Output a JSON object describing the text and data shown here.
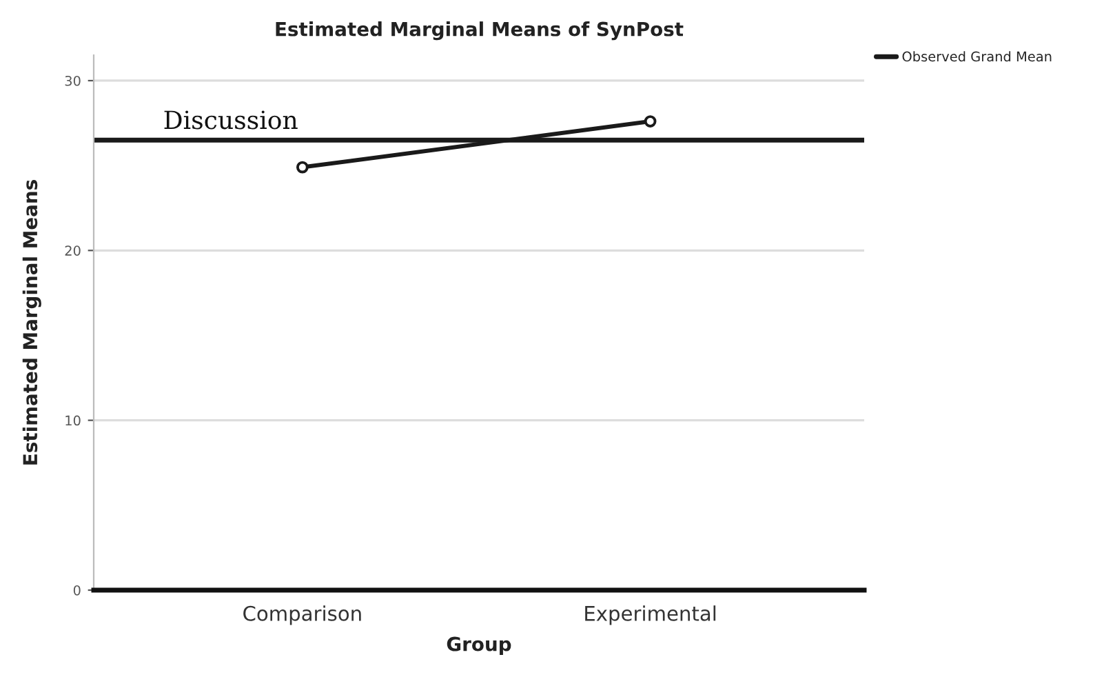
{
  "chart_data": {
    "type": "line",
    "title": "Estimated Marginal Means of SynPost",
    "xlabel": "Group",
    "ylabel": "Estimated Marginal Means",
    "categories": [
      "Comparison",
      "Experimental"
    ],
    "series": [
      {
        "color": "#1a1a1a",
        "values": [
          24.9,
          27.6
        ]
      }
    ],
    "marker": "circle",
    "ylim": [
      0,
      31.5
    ],
    "yticks": [
      0,
      10,
      20,
      30
    ],
    "grid": "y",
    "ref_lines": [
      {
        "axis": "y",
        "value": 26.5,
        "label": "Observed Grand Mean",
        "color": "#1a1a1a",
        "line_style": "solid"
      }
    ],
    "legend": "top right",
    "annotations": [
      "Discussion"
    ]
  }
}
